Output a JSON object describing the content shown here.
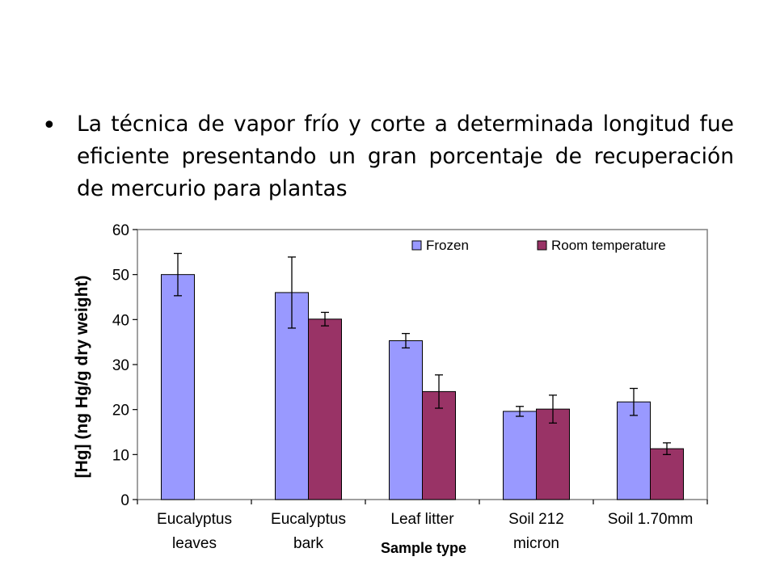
{
  "slide": {
    "bullet_text": "La técnica de vapor frío y corte a determinada longitud fue eficiente presentando un gran porcentaje de recuperación de mercurio para plantas"
  },
  "colors": {
    "frozen": "#9999ff",
    "room_temperature": "#993366",
    "frame": "#808080"
  },
  "chart_data": {
    "type": "bar",
    "categories": [
      [
        "Eucalyptus",
        "leaves"
      ],
      [
        "Eucalyptus",
        "bark"
      ],
      [
        "Leaf litter",
        ""
      ],
      [
        "Soil 212",
        "micron"
      ],
      [
        "Soil 1.70mm",
        ""
      ]
    ],
    "series": [
      {
        "name": "Frozen",
        "values": [
          50,
          46,
          35.3,
          19.6,
          21.7
        ],
        "errors": [
          4.7,
          7.9,
          1.6,
          1.1,
          3.0
        ]
      },
      {
        "name": "Room temperature",
        "values": [
          null,
          40.1,
          24,
          20.1,
          11.3
        ],
        "errors": [
          null,
          1.5,
          3.7,
          3.1,
          1.3
        ]
      }
    ],
    "xlabel": "Sample type",
    "ylabel": "[Hg] (ng Hg/g dry weight)",
    "ylim": [
      0,
      60
    ],
    "yticks": [
      0,
      10,
      20,
      30,
      40,
      50,
      60
    ],
    "legend_position": "top-right",
    "grid": false
  }
}
